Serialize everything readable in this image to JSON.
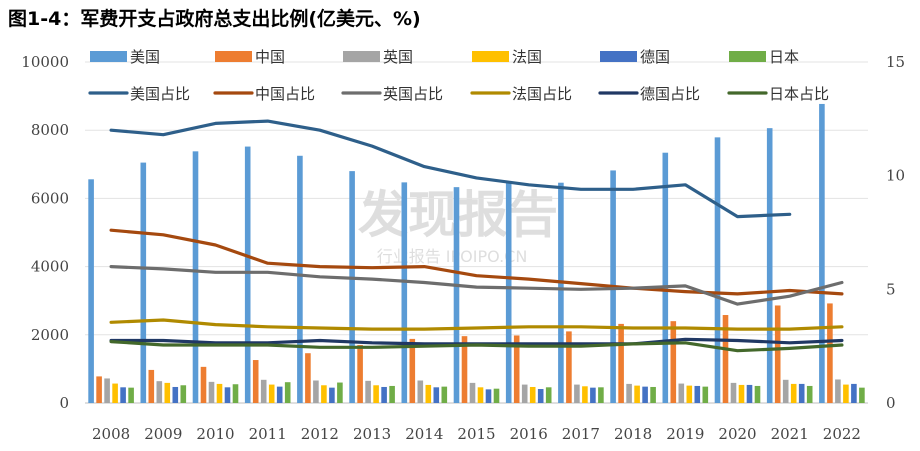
{
  "title": "图1-4：军费开支占政府总支出比例(亿美元、%)",
  "watermark": {
    "main": "发现报告",
    "sub": "行业报告 IPOIPO.CN"
  },
  "chart_data": {
    "type": "bar",
    "categories": [
      "2008",
      "2009",
      "2010",
      "2011",
      "2012",
      "2013",
      "2014",
      "2015",
      "2016",
      "2017",
      "2018",
      "2019",
      "2020",
      "2021",
      "2022"
    ],
    "y_left": {
      "ylim": [
        0,
        10000
      ],
      "ticks": [
        "0",
        "2000",
        "4000",
        "6000",
        "8000",
        "10000"
      ]
    },
    "y_right": {
      "ylim": [
        0,
        15
      ],
      "ticks": [
        "0",
        "5",
        "10",
        "15"
      ]
    },
    "bar_series": [
      {
        "name": "美国",
        "color": "#5b9bd5",
        "values": [
          6560,
          7050,
          7380,
          7520,
          7250,
          6800,
          6470,
          6330,
          6450,
          6460,
          6820,
          7340,
          7790,
          8060,
          8770
        ]
      },
      {
        "name": "中国",
        "color": "#ed7d31",
        "values": [
          780,
          970,
          1060,
          1260,
          1460,
          1700,
          1880,
          1960,
          1980,
          2100,
          2320,
          2400,
          2580,
          2860,
          2920
        ]
      },
      {
        "name": "英国",
        "color": "#a5a5a5",
        "values": [
          720,
          640,
          620,
          680,
          660,
          650,
          660,
          590,
          540,
          540,
          560,
          570,
          590,
          680,
          690
        ]
      },
      {
        "name": "法国",
        "color": "#ffc000",
        "values": [
          570,
          590,
          560,
          540,
          520,
          520,
          530,
          460,
          470,
          490,
          510,
          510,
          530,
          560,
          540
        ]
      },
      {
        "name": "德国",
        "color": "#4472c4",
        "values": [
          460,
          470,
          460,
          480,
          450,
          470,
          460,
          400,
          410,
          450,
          480,
          500,
          530,
          560,
          560
        ]
      },
      {
        "name": "日本",
        "color": "#70ad47",
        "values": [
          450,
          520,
          550,
          610,
          600,
          500,
          480,
          420,
          460,
          460,
          470,
          480,
          500,
          500,
          450
        ]
      }
    ],
    "line_series": [
      {
        "name": "美国占比",
        "color": "#2e5f8a",
        "values": [
          12.0,
          11.8,
          12.3,
          12.4,
          12.0,
          11.3,
          10.4,
          9.9,
          9.6,
          9.4,
          9.4,
          9.6,
          8.2,
          8.3,
          null
        ]
      },
      {
        "name": "中国占比",
        "color": "#a5490f",
        "values": [
          7.6,
          7.4,
          6.95,
          6.15,
          6.0,
          5.95,
          6.0,
          5.6,
          5.45,
          5.25,
          5.05,
          4.9,
          4.8,
          4.95,
          4.8
        ]
      },
      {
        "name": "英国占比",
        "color": "#6d6d6d",
        "values": [
          6.0,
          5.9,
          5.75,
          5.75,
          5.55,
          5.45,
          5.3,
          5.1,
          5.05,
          5.0,
          5.05,
          5.15,
          4.35,
          4.7,
          5.3
        ]
      },
      {
        "name": "法国占比",
        "color": "#b08a00",
        "values": [
          3.55,
          3.65,
          3.45,
          3.35,
          3.3,
          3.25,
          3.25,
          3.3,
          3.35,
          3.35,
          3.3,
          3.3,
          3.25,
          3.25,
          3.35
        ]
      },
      {
        "name": "德国占比",
        "color": "#203864",
        "values": [
          2.75,
          2.75,
          2.65,
          2.65,
          2.75,
          2.65,
          2.6,
          2.6,
          2.6,
          2.6,
          2.6,
          2.8,
          2.75,
          2.65,
          2.75
        ]
      },
      {
        "name": "日本占比",
        "color": "#43682b",
        "values": [
          2.7,
          2.55,
          2.55,
          2.55,
          2.45,
          2.45,
          2.5,
          2.55,
          2.5,
          2.5,
          2.6,
          2.65,
          2.3,
          2.4,
          2.55
        ]
      }
    ]
  }
}
